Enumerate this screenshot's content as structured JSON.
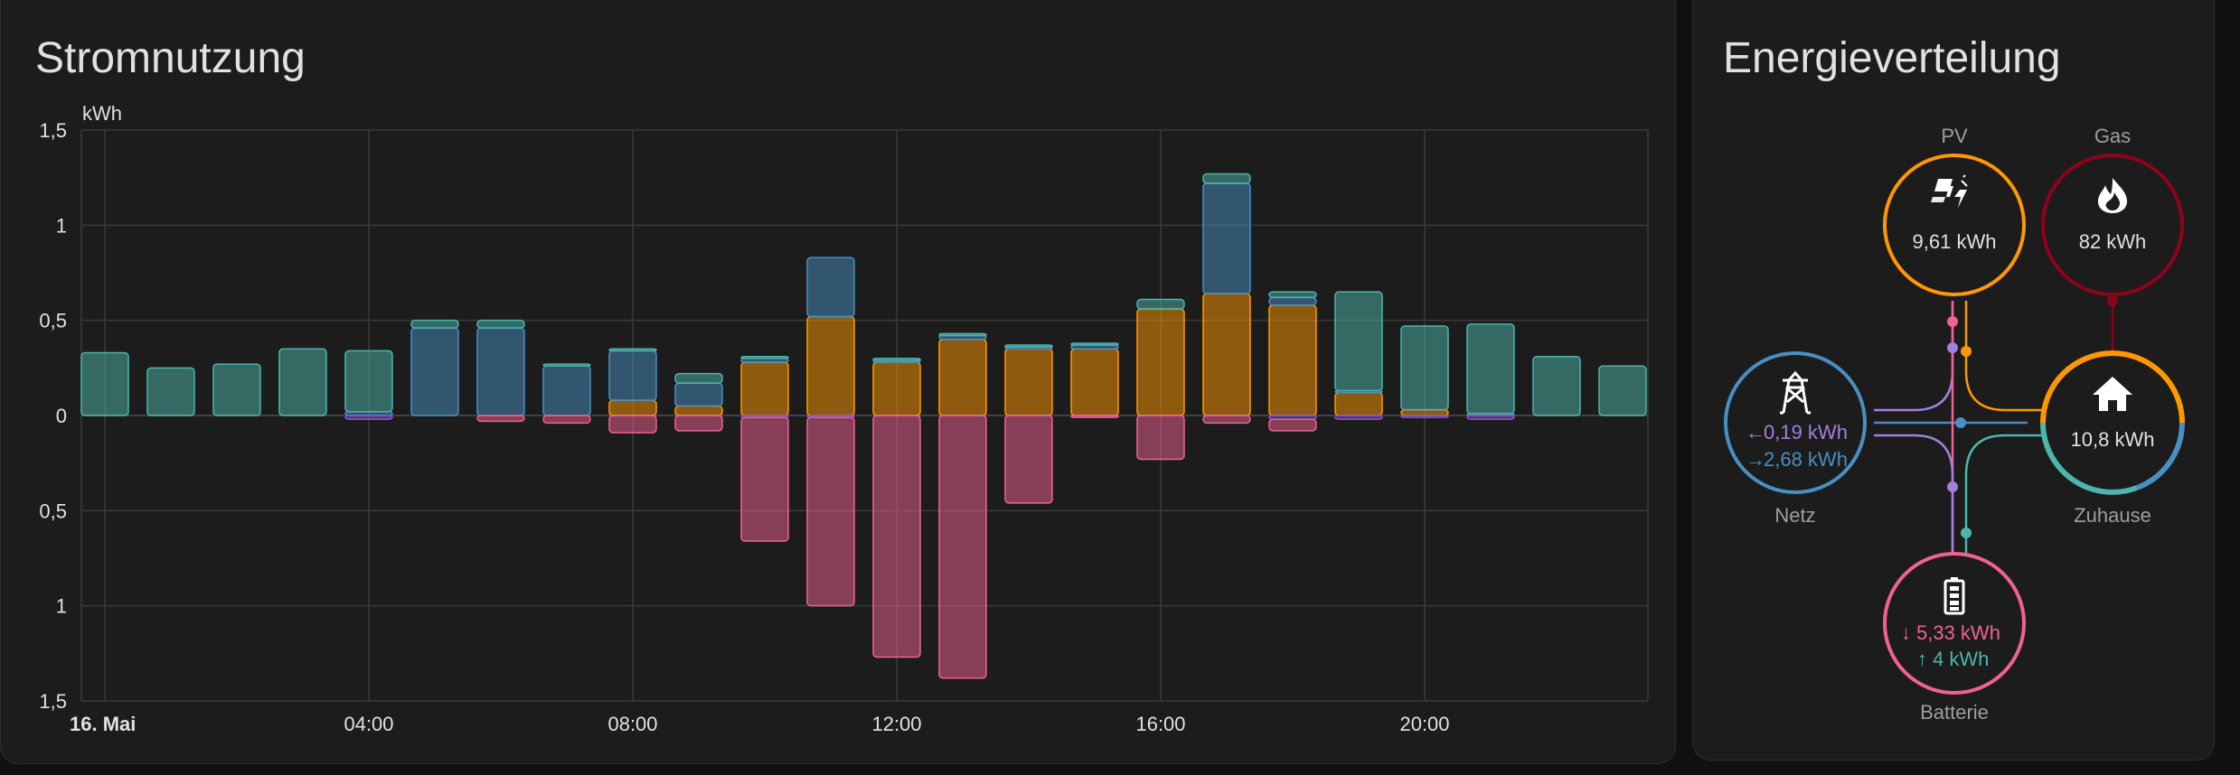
{
  "usage_card": {
    "title": "Stromnutzung"
  },
  "chart_data": {
    "type": "bar",
    "stacked": true,
    "ylabel": "kWh",
    "ylim": [
      -1.5,
      1.5
    ],
    "yticks": [
      1.5,
      1,
      0.5,
      0,
      -0.5,
      -1,
      -1.5
    ],
    "ytick_labels": [
      "1,5",
      "1",
      "0,5",
      "0",
      "0,5",
      "1",
      "1,5"
    ],
    "xtick_labels": [
      "16. Mai",
      "04:00",
      "08:00",
      "12:00",
      "16:00",
      "20:00"
    ],
    "xtick_hours": [
      0,
      4,
      8,
      12,
      16,
      20
    ],
    "grid": true,
    "categories": [
      "00:00",
      "01:00",
      "02:00",
      "03:00",
      "04:00",
      "05:00",
      "06:00",
      "07:00",
      "08:00",
      "09:00",
      "10:00",
      "11:00",
      "12:00",
      "13:00",
      "14:00",
      "15:00",
      "16:00",
      "17:00",
      "18:00",
      "19:00",
      "20:00",
      "21:00",
      "22:00",
      "23:00"
    ],
    "colors": {
      "solar": "#ff9800",
      "grid_import": "#488fc2",
      "battery_out": "#4db6ac",
      "grid_export": "#8353d1",
      "battery_in": "#f06292"
    },
    "positive_series": [
      {
        "key": "solar",
        "values": [
          0,
          0,
          0,
          0,
          0,
          0,
          0,
          0,
          0.08,
          0.05,
          0.28,
          0.52,
          0.28,
          0.4,
          0.35,
          0.35,
          0.56,
          0.64,
          0.58,
          0.12,
          0.03,
          0,
          0,
          0
        ]
      },
      {
        "key": "grid_import",
        "values": [
          0,
          0,
          0,
          0,
          0.02,
          0.46,
          0.46,
          0.26,
          0.26,
          0.12,
          0.02,
          0.31,
          0.01,
          0.02,
          0.01,
          0.02,
          0,
          0.58,
          0.04,
          0.01,
          0,
          0.01,
          0,
          0
        ]
      },
      {
        "key": "battery_out",
        "values": [
          0.33,
          0.25,
          0.27,
          0.35,
          0.32,
          0.04,
          0.04,
          0.01,
          0.01,
          0.05,
          0.01,
          0,
          0.01,
          0.01,
          0.01,
          0.01,
          0.05,
          0.05,
          0.03,
          0.52,
          0.44,
          0.47,
          0.31,
          0.26
        ]
      }
    ],
    "negative_series": [
      {
        "key": "grid_export",
        "values": [
          0,
          0,
          0,
          0,
          -0.02,
          0,
          0,
          0,
          0,
          0,
          -0.01,
          -0.01,
          0,
          0,
          0,
          0,
          0,
          0,
          -0.02,
          -0.02,
          -0.01,
          -0.02,
          0,
          0
        ]
      },
      {
        "key": "battery_in",
        "values": [
          0,
          0,
          0,
          0,
          0,
          0,
          -0.03,
          -0.04,
          -0.09,
          -0.08,
          -0.65,
          -0.99,
          -1.27,
          -1.38,
          -0.46,
          -0.01,
          -0.23,
          -0.04,
          -0.06,
          0,
          0,
          0,
          0,
          0
        ]
      }
    ]
  },
  "energy_card": {
    "title": "Energieverteilung",
    "pv": {
      "label": "PV",
      "value": "9,61 kWh",
      "color": "#ff9800",
      "icon": "solar-power-icon"
    },
    "gas": {
      "label": "Gas",
      "value": "82 kWh",
      "color": "#8e021b",
      "icon": "fire-icon"
    },
    "grid": {
      "label": "Netz",
      "export_value": "0,19 kWh",
      "import_value": "2,68 kWh",
      "export_color": "#a280db",
      "import_color": "#488fc2",
      "icon": "transmission-tower-icon"
    },
    "home": {
      "label": "Zuhause",
      "value": "10,8 kWh",
      "icon": "home-icon"
    },
    "battery": {
      "label": "Batterie",
      "in_value": "5,33 kWh",
      "out_value": "4 kWh",
      "in_color": "#f06292",
      "out_color": "#4db6ac",
      "icon": "battery-icon"
    }
  }
}
